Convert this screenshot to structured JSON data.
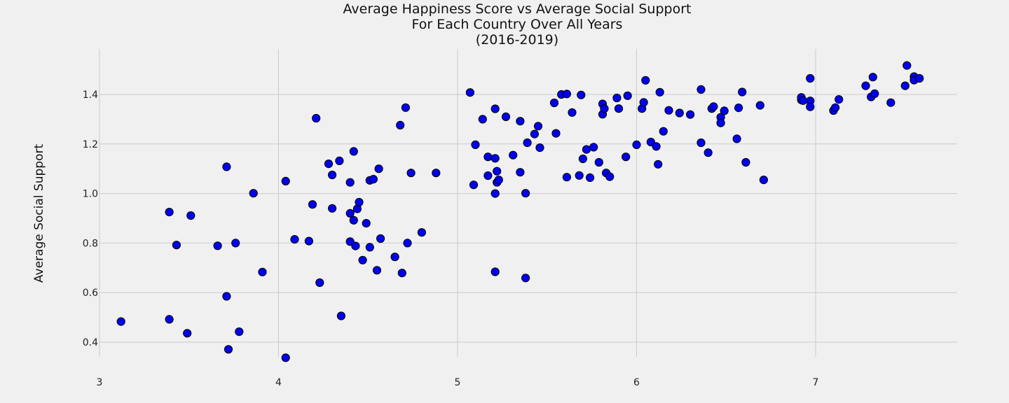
{
  "chart_data": {
    "type": "scatter",
    "title": [
      "Average Happiness Score vs Average Social Support",
      "For Each Country Over All Years",
      "(2016-2019)"
    ],
    "xlabel": "",
    "ylabel": "Average Social Support",
    "xlim": [
      2.95,
      7.82
    ],
    "ylim": [
      0.275,
      1.585
    ],
    "x_ticks": [
      3,
      4,
      5,
      6,
      7
    ],
    "x_tick_labels": [
      "3",
      "4",
      "5",
      "6",
      "7"
    ],
    "y_ticks": [
      0.4,
      0.6,
      0.8,
      1.0,
      1.2,
      1.4
    ],
    "y_tick_labels": [
      "0.4",
      "0.6",
      "0.8",
      "1.0",
      "1.2",
      "1.4"
    ],
    "grid": true,
    "marker_color": "#0000ee",
    "marker_edge_color": "#000000",
    "points": [
      [
        3.12,
        0.483
      ],
      [
        3.39,
        0.925
      ],
      [
        3.39,
        0.492
      ],
      [
        3.43,
        0.792
      ],
      [
        3.49,
        0.436
      ],
      [
        3.51,
        0.911
      ],
      [
        3.66,
        0.789
      ],
      [
        3.71,
        1.108
      ],
      [
        3.71,
        0.585
      ],
      [
        3.72,
        0.371
      ],
      [
        3.76,
        0.8
      ],
      [
        3.78,
        0.442
      ],
      [
        3.86,
        1.001
      ],
      [
        3.91,
        0.683
      ],
      [
        4.04,
        1.05
      ],
      [
        4.04,
        0.337
      ],
      [
        4.09,
        0.815
      ],
      [
        4.17,
        0.808
      ],
      [
        4.19,
        0.956
      ],
      [
        4.21,
        1.304
      ],
      [
        4.23,
        0.64
      ],
      [
        4.28,
        1.12
      ],
      [
        4.3,
        1.075
      ],
      [
        4.3,
        0.94
      ],
      [
        4.34,
        1.132
      ],
      [
        4.35,
        0.506
      ],
      [
        4.4,
        1.045
      ],
      [
        4.4,
        0.92
      ],
      [
        4.4,
        0.806
      ],
      [
        4.42,
        1.17
      ],
      [
        4.42,
        0.892
      ],
      [
        4.43,
        0.788
      ],
      [
        4.44,
        0.938
      ],
      [
        4.45,
        0.965
      ],
      [
        4.47,
        0.731
      ],
      [
        4.49,
        0.88
      ],
      [
        4.51,
        1.053
      ],
      [
        4.51,
        0.783
      ],
      [
        4.53,
        1.058
      ],
      [
        4.55,
        0.69
      ],
      [
        4.56,
        1.1
      ],
      [
        4.57,
        0.818
      ],
      [
        4.65,
        0.744
      ],
      [
        4.68,
        1.276
      ],
      [
        4.69,
        0.679
      ],
      [
        4.71,
        1.347
      ],
      [
        4.72,
        0.8
      ],
      [
        4.74,
        1.083
      ],
      [
        4.8,
        0.843
      ],
      [
        4.88,
        1.083
      ],
      [
        5.07,
        1.408
      ],
      [
        5.09,
        1.035
      ],
      [
        5.1,
        1.197
      ],
      [
        5.14,
        1.3
      ],
      [
        5.17,
        1.148
      ],
      [
        5.17,
        1.072
      ],
      [
        5.21,
        1.342
      ],
      [
        5.21,
        1.142
      ],
      [
        5.21,
        1.0
      ],
      [
        5.21,
        0.684
      ],
      [
        5.22,
        1.09
      ],
      [
        5.22,
        1.045
      ],
      [
        5.23,
        1.055
      ],
      [
        5.27,
        1.31
      ],
      [
        5.31,
        1.155
      ],
      [
        5.35,
        1.292
      ],
      [
        5.35,
        1.086
      ],
      [
        5.38,
        1.001
      ],
      [
        5.38,
        0.659
      ],
      [
        5.39,
        1.205
      ],
      [
        5.43,
        1.24
      ],
      [
        5.45,
        1.272
      ],
      [
        5.46,
        1.185
      ],
      [
        5.54,
        1.366
      ],
      [
        5.55,
        1.243
      ],
      [
        5.58,
        1.4
      ],
      [
        5.61,
        1.402
      ],
      [
        5.61,
        1.066
      ],
      [
        5.64,
        1.327
      ],
      [
        5.68,
        1.073
      ],
      [
        5.69,
        1.398
      ],
      [
        5.7,
        1.14
      ],
      [
        5.72,
        1.178
      ],
      [
        5.74,
        1.064
      ],
      [
        5.76,
        1.187
      ],
      [
        5.79,
        1.126
      ],
      [
        5.81,
        1.362
      ],
      [
        5.81,
        1.32
      ],
      [
        5.82,
        1.343
      ],
      [
        5.83,
        1.083
      ],
      [
        5.85,
        1.068
      ],
      [
        5.89,
        1.386
      ],
      [
        5.9,
        1.343
      ],
      [
        5.94,
        1.148
      ],
      [
        5.95,
        1.395
      ],
      [
        6.0,
        1.197
      ],
      [
        6.03,
        1.343
      ],
      [
        6.04,
        1.368
      ],
      [
        6.05,
        1.457
      ],
      [
        6.08,
        1.208
      ],
      [
        6.11,
        1.19
      ],
      [
        6.12,
        1.118
      ],
      [
        6.13,
        1.409
      ],
      [
        6.15,
        1.251
      ],
      [
        6.18,
        1.336
      ],
      [
        6.24,
        1.325
      ],
      [
        6.3,
        1.319
      ],
      [
        6.36,
        1.42
      ],
      [
        6.36,
        1.205
      ],
      [
        6.4,
        1.165
      ],
      [
        6.42,
        1.343
      ],
      [
        6.43,
        1.351
      ],
      [
        6.47,
        1.308
      ],
      [
        6.47,
        1.285
      ],
      [
        6.49,
        1.334
      ],
      [
        6.56,
        1.221
      ],
      [
        6.57,
        1.346
      ],
      [
        6.59,
        1.41
      ],
      [
        6.61,
        1.126
      ],
      [
        6.69,
        1.356
      ],
      [
        6.71,
        1.055
      ],
      [
        6.92,
        1.378
      ],
      [
        6.92,
        1.388
      ],
      [
        6.93,
        1.375
      ],
      [
        6.97,
        1.465
      ],
      [
        6.97,
        1.374
      ],
      [
        6.97,
        1.35
      ],
      [
        7.1,
        1.335
      ],
      [
        7.11,
        1.347
      ],
      [
        7.13,
        1.38
      ],
      [
        7.28,
        1.435
      ],
      [
        7.31,
        1.39
      ],
      [
        7.32,
        1.47
      ],
      [
        7.33,
        1.403
      ],
      [
        7.42,
        1.367
      ],
      [
        7.5,
        1.435
      ],
      [
        7.51,
        1.517
      ],
      [
        7.55,
        1.472
      ],
      [
        7.55,
        1.458
      ],
      [
        7.58,
        1.465
      ]
    ]
  }
}
